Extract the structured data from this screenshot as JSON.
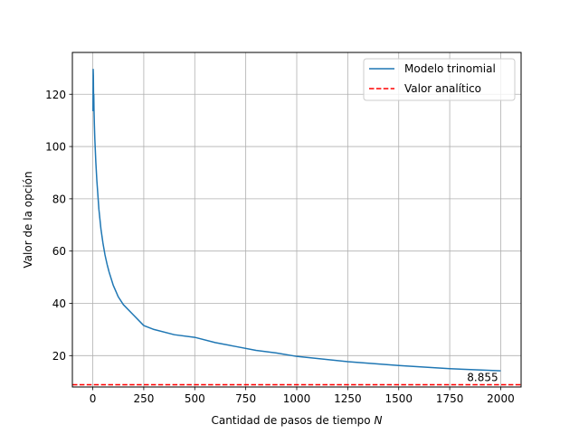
{
  "chart_data": {
    "type": "line",
    "title": "",
    "xlabel": "Cantidad de pasos de tiempo",
    "xlabel_var": "N",
    "ylabel": "Valor de la opción",
    "xlim": [
      -100,
      2100
    ],
    "ylim": [
      8,
      136
    ],
    "xticks": [
      0,
      250,
      500,
      750,
      1000,
      1250,
      1500,
      1750,
      2000
    ],
    "yticks": [
      20,
      40,
      60,
      80,
      100,
      120
    ],
    "grid": true,
    "legend_position": "top-right",
    "series": [
      {
        "name": "Modelo trinomial",
        "color": "#1f77b4",
        "style": "solid",
        "x": [
          1,
          2,
          3,
          4,
          5,
          6,
          8,
          10,
          15,
          20,
          30,
          40,
          50,
          60,
          70,
          80,
          100,
          125,
          150,
          200,
          250,
          300,
          400,
          500,
          600,
          700,
          800,
          900,
          1000,
          1250,
          1500,
          1750,
          2000
        ],
        "y": [
          113.5,
          129.5,
          127,
          118,
          120,
          114,
          108,
          103,
          94,
          87,
          76,
          68.5,
          63,
          58.5,
          55,
          52,
          47,
          42.5,
          39.5,
          35.5,
          31.5,
          30,
          28,
          27,
          25,
          23.5,
          22,
          21,
          19.7,
          17.7,
          16.2,
          15,
          14.2
        ]
      },
      {
        "name": "Valor analítico",
        "color": "#ff0000",
        "style": "dashed",
        "constant": 8.855
      }
    ],
    "annotations": [
      {
        "text": "8.855",
        "x": 2000,
        "y": 8.855,
        "color": "#ff0000"
      }
    ]
  }
}
